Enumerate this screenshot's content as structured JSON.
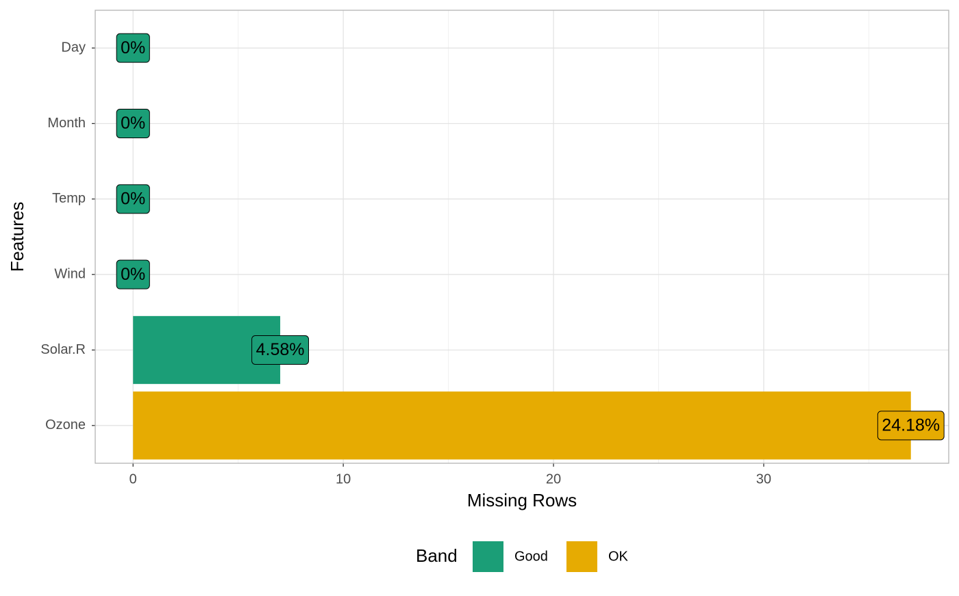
{
  "chart_data": {
    "type": "bar",
    "orientation": "horizontal",
    "categories": [
      "Day",
      "Month",
      "Temp",
      "Wind",
      "Solar.R",
      "Ozone"
    ],
    "values": [
      0,
      0,
      0,
      0,
      7,
      37
    ],
    "bands": [
      "Good",
      "Good",
      "Good",
      "Good",
      "Good",
      "OK"
    ],
    "percent_values": [
      0,
      0,
      0,
      0,
      4.58,
      24.18
    ],
    "percent_labels": [
      "0%",
      "0%",
      "0%",
      "0%",
      "4.58%",
      "24.18%"
    ],
    "x_label": "Missing Rows",
    "y_label": "Features",
    "xlim": [
      -1.8,
      38.8
    ],
    "xticks": [
      0,
      10,
      20,
      30
    ],
    "grid": true,
    "legend": {
      "title": "Band",
      "position": "bottom",
      "items": [
        {
          "name": "Good",
          "color": "#1b9e77"
        },
        {
          "name": "OK",
          "color": "#e6ab02"
        }
      ]
    }
  }
}
